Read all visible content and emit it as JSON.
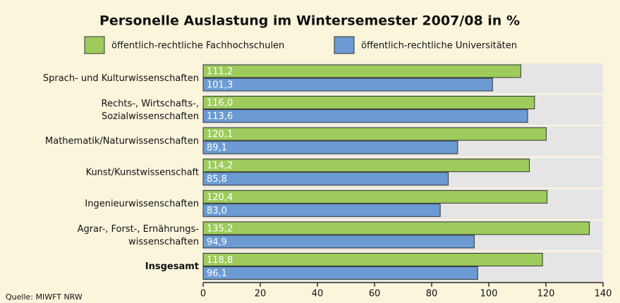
{
  "chart_data": {
    "type": "bar",
    "orientation": "horizontal",
    "title": "Personelle Auslastung im Wintersemester 2007/08 in %",
    "categories": [
      "Sprach- und Kulturwissenschaften",
      "Rechts-, Wirtschafts-,\nSozialwissenschaften",
      "Mathematik/Naturwissenschaften",
      "Kunst/Kunstwissenschaft",
      "Ingenieurwissenschaften",
      "Agrar-, Forst-, Ernährungs-\nwissenschaften",
      "Insgesamt"
    ],
    "series": [
      {
        "name": "öffentlich-rechtliche Fachhochschulen",
        "color": "#9dcc5c",
        "values": [
          111.2,
          116.0,
          120.1,
          114.2,
          120.4,
          135.2,
          118.8
        ],
        "value_labels": [
          "111,2",
          "116,0",
          "120,1",
          "114,2",
          "120,4",
          "135,2",
          "118,8"
        ]
      },
      {
        "name": "öffentlich-rechtliche Universitäten",
        "color": "#6b9bd2",
        "values": [
          101.3,
          113.6,
          89.1,
          85.8,
          83.0,
          94.9,
          96.1
        ],
        "value_labels": [
          "101,3",
          "113,6",
          "89,1",
          "85,8",
          "83,0",
          "94,9",
          "96,1"
        ]
      }
    ],
    "xlim": [
      0,
      140
    ],
    "xticks": [
      0,
      20,
      40,
      60,
      80,
      100,
      120,
      140
    ],
    "source": "Quelle: MIWFT NRW"
  }
}
